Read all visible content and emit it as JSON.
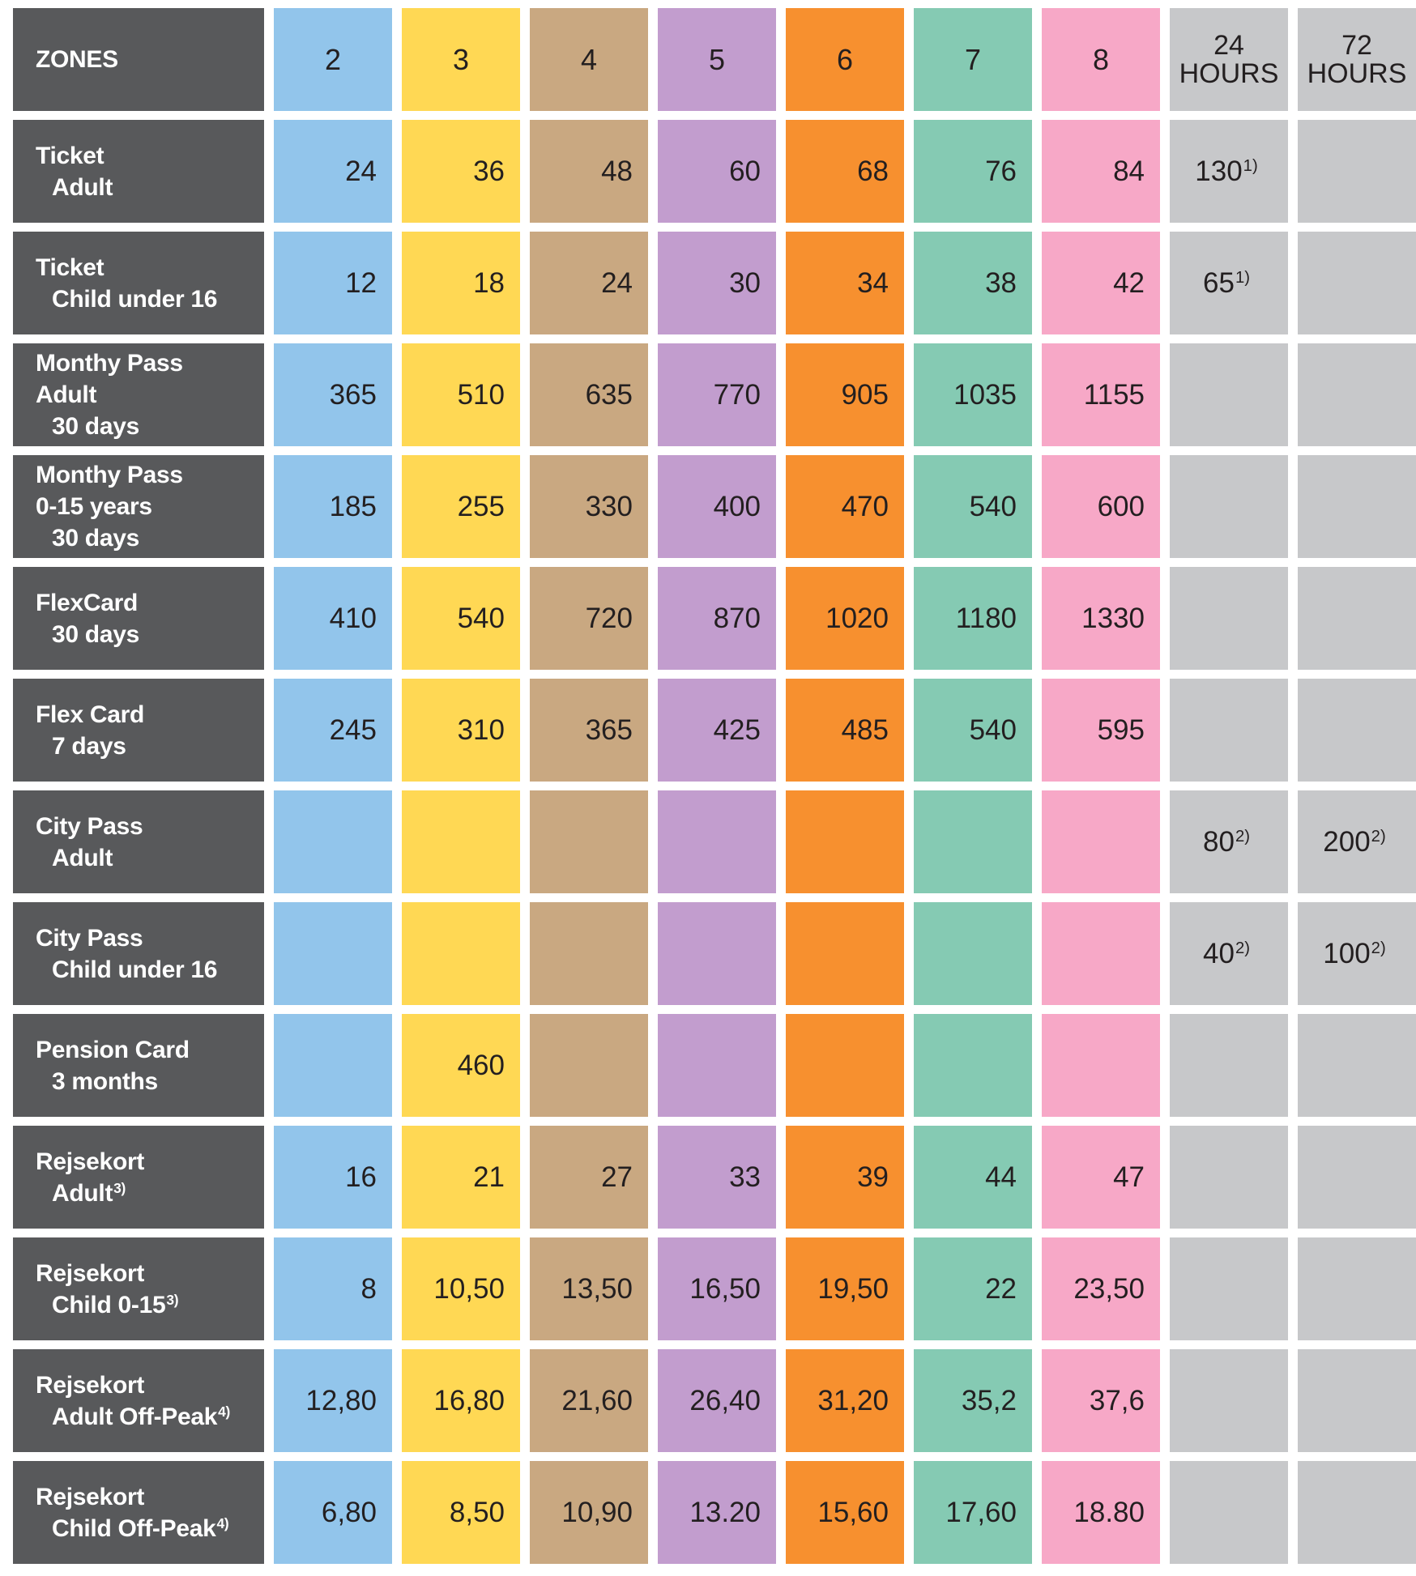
{
  "chart_data": {
    "type": "table",
    "columns": [
      "ZONES",
      "2",
      "3",
      "4",
      "5",
      "6",
      "7",
      "8",
      "24 HOURS",
      "72 HOURS"
    ],
    "rows": [
      [
        "Ticket Adult",
        "24",
        "36",
        "48",
        "60",
        "68",
        "76",
        "84",
        "130¹⁾",
        ""
      ],
      [
        "Ticket Child under 16",
        "12",
        "18",
        "24",
        "30",
        "34",
        "38",
        "42",
        "65¹⁾",
        ""
      ],
      [
        "Monthy Pass Adult 30 days",
        "365",
        "510",
        "635",
        "770",
        "905",
        "1035",
        "1155",
        "",
        ""
      ],
      [
        "Monthy Pass 0-15 years 30 days",
        "185",
        "255",
        "330",
        "400",
        "470",
        "540",
        "600",
        "",
        ""
      ],
      [
        "FlexCard 30 days",
        "410",
        "540",
        "720",
        "870",
        "1020",
        "1180",
        "1330",
        "",
        ""
      ],
      [
        "Flex Card 7 days",
        "245",
        "310",
        "365",
        "425",
        "485",
        "540",
        "595",
        "",
        ""
      ],
      [
        "City Pass Adult",
        "",
        "",
        "",
        "",
        "",
        "",
        "",
        "80²⁾",
        "200²⁾"
      ],
      [
        "City Pass Child under 16",
        "",
        "",
        "",
        "",
        "",
        "",
        "",
        "40²⁾",
        "100²⁾"
      ],
      [
        "Pension Card 3 months",
        "",
        "460",
        "",
        "",
        "",
        "",
        "",
        "",
        ""
      ],
      [
        "Rejsekort Adult³⁾",
        "16",
        "21",
        "27",
        "33",
        "39",
        "44",
        "47",
        "",
        ""
      ],
      [
        "Rejsekort Child 0-15³⁾",
        "8",
        "10,50",
        "13,50",
        "16,50",
        "19,50",
        "22",
        "23,50",
        "",
        ""
      ],
      [
        "Rejsekort Adult Off-Peak⁴⁾",
        "12,80",
        "16,80",
        "21,60",
        "26,40",
        "31,20",
        "35,2",
        "37,6",
        "",
        ""
      ],
      [
        "Rejsekort Child Off-Peak⁴⁾",
        "6,80",
        "8,50",
        "10,90",
        "13.20",
        "15,60",
        "17,60",
        "18.80",
        "",
        ""
      ]
    ]
  },
  "colors": {
    "label_bg": "#58595B",
    "label_text": "#FFFFFF",
    "value_text": "#231F20",
    "background": "#FFFFFF",
    "zone_2": "#92C5EB",
    "zone_3": "#FFD854",
    "zone_4": "#C9A881",
    "zone_5": "#C29DCE",
    "zone_6": "#F7902F",
    "zone_7": "#85CAB3",
    "zone_8": "#F7A8C7",
    "hours": "#C7C8CA"
  },
  "table": {
    "header": {
      "label": "ZONES",
      "columns": [
        {
          "id": "zone-2",
          "type": "zone",
          "lines": [
            "2"
          ],
          "color": "#92C5EB"
        },
        {
          "id": "zone-3",
          "type": "zone",
          "lines": [
            "3"
          ],
          "color": "#FFD854"
        },
        {
          "id": "zone-4",
          "type": "zone",
          "lines": [
            "4"
          ],
          "color": "#C9A881"
        },
        {
          "id": "zone-5",
          "type": "zone",
          "lines": [
            "5"
          ],
          "color": "#C29DCE"
        },
        {
          "id": "zone-6",
          "type": "zone",
          "lines": [
            "6"
          ],
          "color": "#F7902F"
        },
        {
          "id": "zone-7",
          "type": "zone",
          "lines": [
            "7"
          ],
          "color": "#85CAB3"
        },
        {
          "id": "zone-8",
          "type": "zone",
          "lines": [
            "8"
          ],
          "color": "#F7A8C7"
        },
        {
          "id": "24-hours",
          "type": "hours",
          "lines": [
            "24",
            "HOURS"
          ],
          "color": "#C7C8CA"
        },
        {
          "id": "72-hours",
          "type": "hours",
          "lines": [
            "72",
            "HOURS"
          ],
          "color": "#C7C8CA"
        }
      ]
    },
    "rows": [
      {
        "id": "ticket-adult",
        "label_lines": [
          {
            "text": "Ticket"
          },
          {
            "text": "Adult",
            "indent": true
          }
        ],
        "values": [
          "24",
          "36",
          "48",
          "60",
          "68",
          "76",
          "84",
          {
            "text": "130",
            "sup": "1)"
          },
          ""
        ]
      },
      {
        "id": "ticket-child",
        "label_lines": [
          {
            "text": "Ticket"
          },
          {
            "text": "Child under 16",
            "indent": true
          }
        ],
        "values": [
          "12",
          "18",
          "24",
          "30",
          "34",
          "38",
          "42",
          {
            "text": "65",
            "sup": "1)"
          },
          ""
        ]
      },
      {
        "id": "monthly-pass-adult",
        "label_lines": [
          {
            "text": "Monthy Pass"
          },
          {
            "text": "Adult"
          },
          {
            "text": "30 days",
            "indent": true
          }
        ],
        "values": [
          "365",
          "510",
          "635",
          "770",
          "905",
          "1035",
          "1155",
          "",
          ""
        ]
      },
      {
        "id": "monthly-pass-child",
        "label_lines": [
          {
            "text": "Monthy Pass"
          },
          {
            "text": "0-15 years"
          },
          {
            "text": "30 days",
            "indent": true
          }
        ],
        "values": [
          "185",
          "255",
          "330",
          "400",
          "470",
          "540",
          "600",
          "",
          ""
        ]
      },
      {
        "id": "flexcard-30-days",
        "label_lines": [
          {
            "text": "FlexCard"
          },
          {
            "text": "30 days",
            "indent": true
          }
        ],
        "values": [
          "410",
          "540",
          "720",
          "870",
          "1020",
          "1180",
          "1330",
          "",
          ""
        ]
      },
      {
        "id": "flexcard-7-days",
        "label_lines": [
          {
            "text": "Flex Card"
          },
          {
            "text": "7 days",
            "indent": true
          }
        ],
        "values": [
          "245",
          "310",
          "365",
          "425",
          "485",
          "540",
          "595",
          "",
          ""
        ]
      },
      {
        "id": "city-pass-adult",
        "label_lines": [
          {
            "text": "City Pass"
          },
          {
            "text": "Adult",
            "indent": true
          }
        ],
        "values": [
          "",
          "",
          "",
          "",
          "",
          "",
          "",
          {
            "text": "80",
            "sup": "2)"
          },
          {
            "text": "200",
            "sup": "2)"
          }
        ]
      },
      {
        "id": "city-pass-child",
        "label_lines": [
          {
            "text": "City Pass"
          },
          {
            "text": "Child under 16",
            "indent": true
          }
        ],
        "values": [
          "",
          "",
          "",
          "",
          "",
          "",
          "",
          {
            "text": "40",
            "sup": "2)"
          },
          {
            "text": "100",
            "sup": "2)"
          }
        ]
      },
      {
        "id": "pension-card",
        "label_lines": [
          {
            "text": "Pension Card"
          },
          {
            "text": "3 months",
            "indent": true
          }
        ],
        "values": [
          "",
          "460",
          "",
          "",
          "",
          "",
          "",
          "",
          ""
        ]
      },
      {
        "id": "rejsekort-adult",
        "label_lines": [
          {
            "text": "Rejsekort"
          },
          {
            "text": "Adult",
            "sup": "3)",
            "indent": true
          }
        ],
        "values": [
          "16",
          "21",
          "27",
          "33",
          "39",
          "44",
          "47",
          "",
          ""
        ]
      },
      {
        "id": "rejsekort-child",
        "label_lines": [
          {
            "text": "Rejsekort"
          },
          {
            "text": "Child 0-15",
            "sup": "3)",
            "indent": true
          }
        ],
        "values": [
          "8",
          "10,50",
          "13,50",
          "16,50",
          "19,50",
          "22",
          "23,50",
          "",
          ""
        ]
      },
      {
        "id": "rejsekort-adult-offpeak",
        "label_lines": [
          {
            "text": "Rejsekort"
          },
          {
            "text": "Adult Off-Peak",
            "sup": "4)",
            "indent": true
          }
        ],
        "values": [
          "12,80",
          "16,80",
          "21,60",
          "26,40",
          "31,20",
          "35,2",
          "37,6",
          "",
          ""
        ]
      },
      {
        "id": "rejsekort-child-offpeak",
        "label_lines": [
          {
            "text": "Rejsekort"
          },
          {
            "text": "Child Off-Peak",
            "sup": "4)",
            "indent": true
          }
        ],
        "values": [
          "6,80",
          "8,50",
          "10,90",
          "13.20",
          "15,60",
          "17,60",
          "18.80",
          "",
          ""
        ]
      }
    ]
  }
}
